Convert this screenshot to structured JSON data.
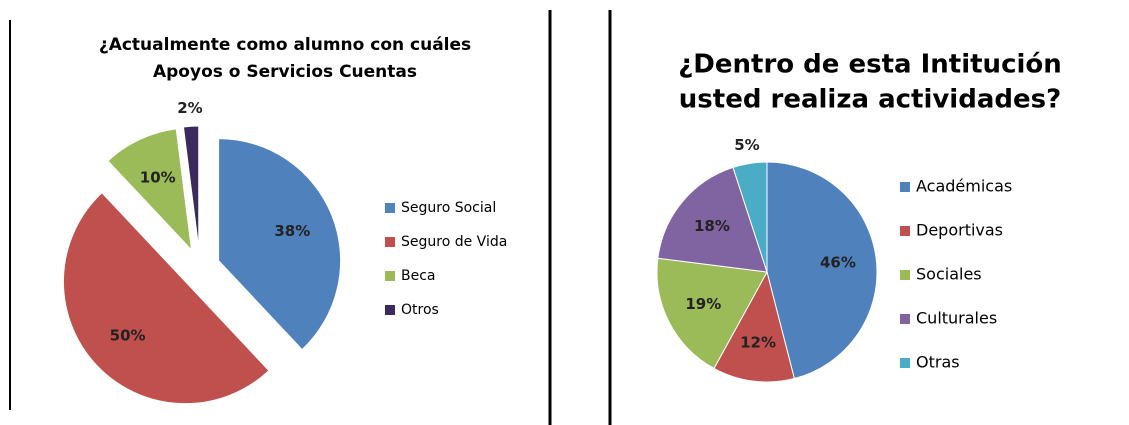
{
  "chart_data": [
    {
      "type": "pie",
      "title": [
        "¿Actualmente como alumno con cuáles",
        "Apoyos o Servicios Cuentas"
      ],
      "categories": [
        "Seguro Social",
        "Seguro de Vida",
        "Beca",
        "Otros"
      ],
      "values": [
        38,
        50,
        10,
        2
      ],
      "value_labels": [
        "38%",
        "50%",
        "10%",
        "2%"
      ],
      "colors": [
        "#4f81bd",
        "#c0504d",
        "#9bbb59",
        "#3b2a5c"
      ],
      "legend": "right",
      "exploded": true
    },
    {
      "type": "pie",
      "title": [
        "¿Dentro de esta Intitución",
        "usted realiza actividades?"
      ],
      "categories": [
        "Académicas",
        "Deportivas",
        "Sociales",
        "Culturales",
        "Otras"
      ],
      "values": [
        46,
        12,
        19,
        18,
        5
      ],
      "value_labels": [
        "46%",
        "12%",
        "19%",
        "18%",
        "5%"
      ],
      "colors": [
        "#4f81bd",
        "#c0504d",
        "#9bbb59",
        "#8064a2",
        "#4bacc6"
      ],
      "legend": "right",
      "exploded": false
    }
  ]
}
